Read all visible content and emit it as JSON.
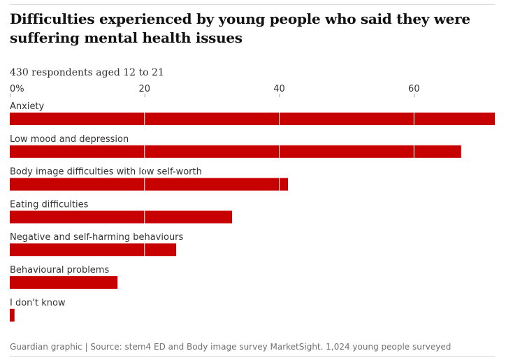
{
  "title": "Difficulties experienced by young people who said they were suffering mental health issues",
  "subtitle": "430 respondents aged 12 to 21",
  "source": "Guardian graphic | Source: stem4 ED and Body image survey MarketSight. 1,024 young people surveyed",
  "colors": {
    "bar": "#c70000",
    "gridline": "#ffffff",
    "text": "#121212",
    "muted_text": "#707070"
  },
  "chart_data": {
    "type": "bar",
    "orientation": "horizontal",
    "xlim": [
      0,
      72
    ],
    "xticks": [
      0,
      20,
      40,
      60
    ],
    "xtick_labels": [
      "0%",
      "20",
      "40",
      "60"
    ],
    "grid": true,
    "categories": [
      "Anxiety",
      "Low mood and depression",
      "Body image difficulties with low self-worth",
      "Eating difficulties",
      "Negative and self-harming behaviours",
      "Behavioural problems",
      "I don't know"
    ],
    "values": [
      72,
      67,
      41.3,
      33,
      24.7,
      16,
      0.7
    ]
  }
}
